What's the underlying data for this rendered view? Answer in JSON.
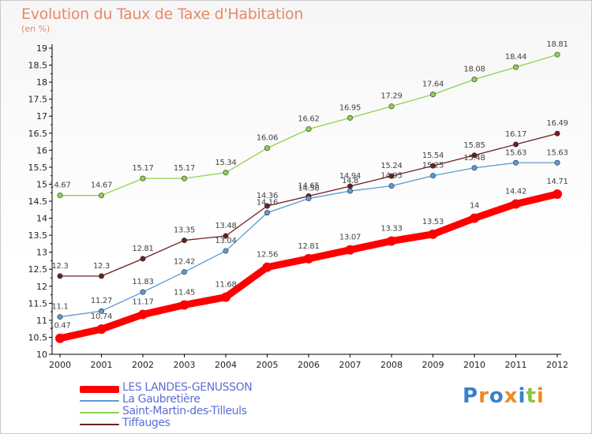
{
  "chart_data": {
    "type": "line",
    "title": "Evolution du Taux de Taxe d'Habitation",
    "ylabel": "(en %)",
    "x": [
      "2000",
      "2001",
      "2002",
      "2003",
      "2004",
      "2005",
      "2006",
      "2007",
      "2008",
      "2009",
      "2010",
      "2011",
      "2012"
    ],
    "ylim": [
      10,
      19
    ],
    "yticks": [
      "10",
      "10.5",
      "11",
      "11.5",
      "12",
      "12.5",
      "13",
      "13.5",
      "14",
      "14.5",
      "15",
      "15.5",
      "16",
      "16.5",
      "17",
      "17.5",
      "18",
      "18.5",
      "19"
    ],
    "grid": false,
    "legend_position": "bottom-left",
    "series": [
      {
        "name": "LES LANDES-GENUSSON",
        "color": "#ff0000",
        "values": [
          10.47,
          10.74,
          11.17,
          11.45,
          11.68,
          12.56,
          12.81,
          13.07,
          13.33,
          13.53,
          14,
          14.42,
          14.71
        ],
        "labels": [
          "10.47",
          "10.74",
          "11.17",
          "11.45",
          "11.68",
          "12.56",
          "12.81",
          "13.07",
          "13.33",
          "13.53",
          "14",
          "14.42",
          "14.71"
        ]
      },
      {
        "name": "La Gaubretière",
        "color": "#5b9bd5",
        "values": [
          11.1,
          11.27,
          11.83,
          12.42,
          13.04,
          14.16,
          14.58,
          14.8,
          14.95,
          15.25,
          15.48,
          15.63,
          15.63
        ],
        "labels": [
          "11.1",
          "11.27",
          "11.83",
          "12.42",
          "13.04",
          "14.16",
          "14.58",
          "14.8",
          "14.95",
          "15.25",
          "15.48",
          "15.63",
          "15.63"
        ]
      },
      {
        "name": "Saint-Martin-des-Tilleuls",
        "color": "#8fd14f",
        "values": [
          14.67,
          14.67,
          15.17,
          15.17,
          15.34,
          16.06,
          16.62,
          16.95,
          17.29,
          17.64,
          18.08,
          18.44,
          18.81
        ],
        "labels": [
          "14.67",
          "14.67",
          "15.17",
          "15.17",
          "15.34",
          "16.06",
          "16.62",
          "16.95",
          "17.29",
          "17.64",
          "18.08",
          "18.44",
          "18.81"
        ]
      },
      {
        "name": "Tiffauges",
        "color": "#6b1f1f",
        "values": [
          12.3,
          12.3,
          12.81,
          13.35,
          13.48,
          14.36,
          14.65,
          14.94,
          15.24,
          15.54,
          15.85,
          16.17,
          16.49
        ],
        "labels": [
          "12.3",
          "12.3",
          "12.81",
          "13.35",
          "13.48",
          "14.36",
          "14.65",
          "14.94",
          "15.24",
          "15.54",
          "15.85",
          "16.17",
          "16.49"
        ]
      }
    ]
  },
  "logo": {
    "letters": [
      "P",
      "r",
      "o",
      "x",
      "i",
      "t",
      "i"
    ],
    "colors": [
      "#3a7fd1",
      "#ef8a1f",
      "#3a7fd1",
      "#ef8a1f",
      "#3a7fd1",
      "#8cc63e",
      "#ef8a1f"
    ]
  }
}
